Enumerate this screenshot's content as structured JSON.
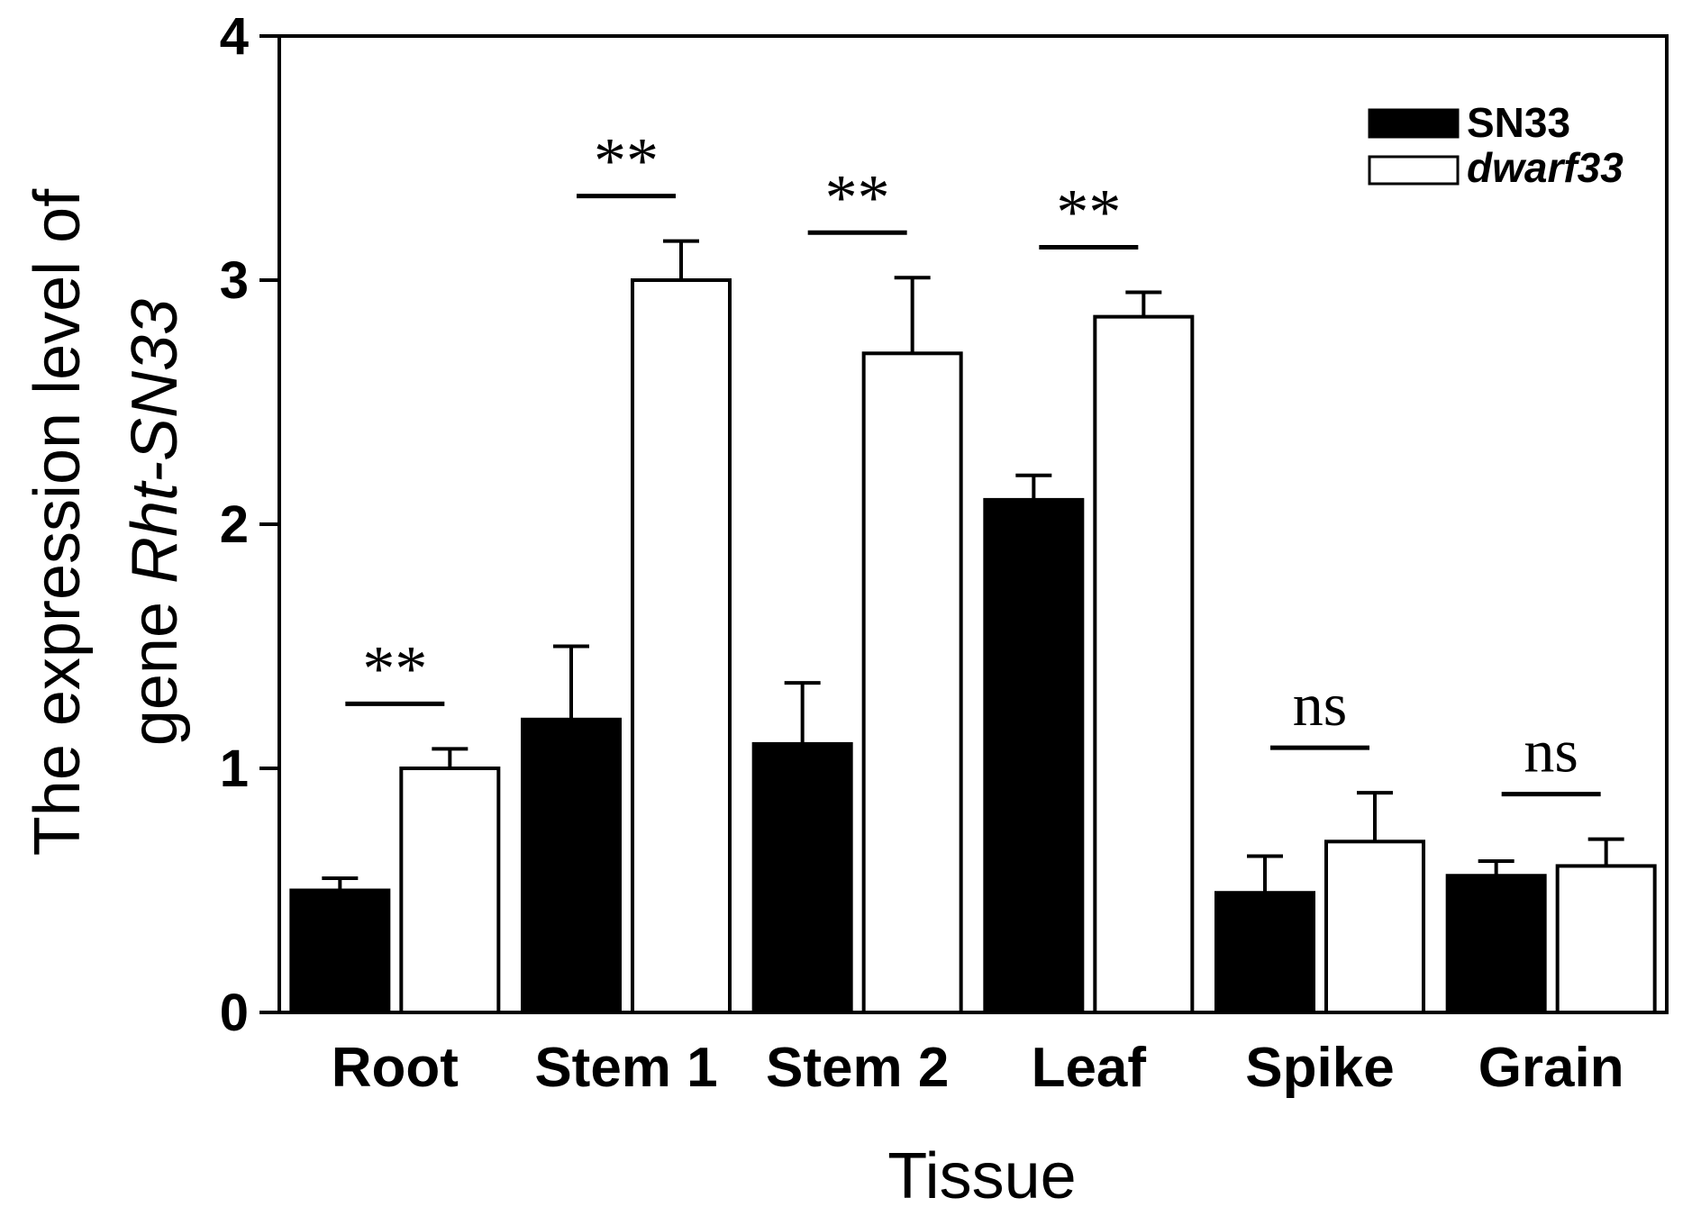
{
  "chart_data": {
    "type": "bar",
    "title": "",
    "xlabel": "Tissue",
    "ylabel_line1": "The expression level of",
    "ylabel_line2_prefix": "gene ",
    "ylabel_line2_italic": "Rht",
    "ylabel_line2_suffix": "-SN33",
    "ylim": [
      0,
      4
    ],
    "yticks": [
      "0",
      "1",
      "2",
      "3",
      "4"
    ],
    "categories": [
      "Root",
      "Stem 1",
      "Stem 2",
      "Leaf",
      "Spike",
      "Grain"
    ],
    "series": [
      {
        "name": "SN33",
        "color": "#000000",
        "values": [
          0.5,
          1.2,
          1.1,
          2.1,
          0.49,
          0.56
        ],
        "errors": [
          0.05,
          0.3,
          0.25,
          0.1,
          0.15,
          0.06
        ]
      },
      {
        "name": "dwarf33",
        "color": "#ffffff",
        "values": [
          1.0,
          3.0,
          2.7,
          2.85,
          0.7,
          0.6
        ],
        "errors": [
          0.08,
          0.16,
          0.31,
          0.1,
          0.2,
          0.11
        ]
      }
    ],
    "significance": [
      "**",
      "**",
      "**",
      "**",
      "ns",
      "ns"
    ],
    "legend": {
      "position": "top-right",
      "entries": [
        "SN33",
        "dwarf33"
      ]
    },
    "grid": false
  }
}
